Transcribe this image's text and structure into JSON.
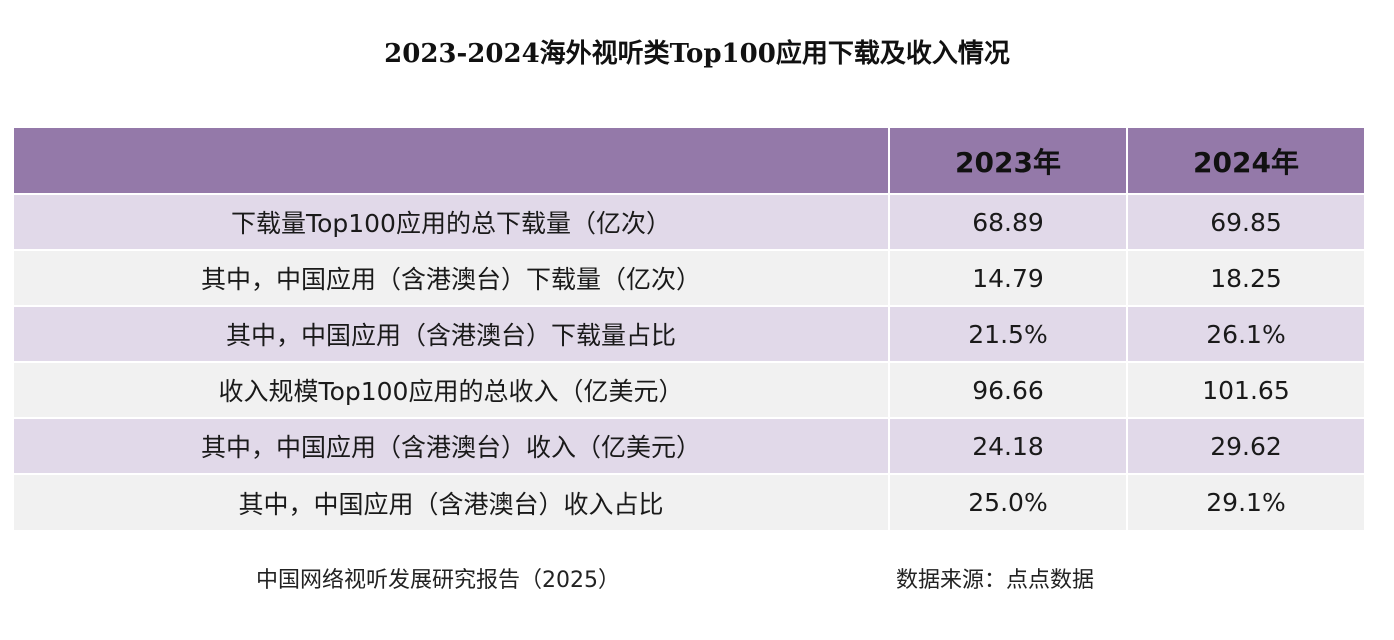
{
  "chart_data": {
    "type": "table",
    "title": "2023-2024海外视听类Top100应用下载及收入情况",
    "columns": [
      "",
      "2023年",
      "2024年"
    ],
    "rows": [
      {
        "label": "下载量Top100应用的总下载量（亿次）",
        "values": [
          "68.89",
          "69.85"
        ]
      },
      {
        "label": "其中，中国应用（含港澳台）下载量（亿次）",
        "values": [
          "14.79",
          "18.25"
        ]
      },
      {
        "label": "其中，中国应用（含港澳台）下载量占比",
        "values": [
          "21.5%",
          "26.1%"
        ]
      },
      {
        "label": "收入规模Top100应用的总收入（亿美元）",
        "values": [
          "96.66",
          "101.65"
        ]
      },
      {
        "label": "其中，中国应用（含港澳台）收入（亿美元）",
        "values": [
          "24.18",
          "29.62"
        ]
      },
      {
        "label": "其中，中国应用（含港澳台）收入占比",
        "values": [
          "25.0%",
          "29.1%"
        ]
      }
    ],
    "header_color": "#9479a9",
    "row_colors": [
      "#e1d9e9",
      "#f1f1f1"
    ]
  },
  "footer": {
    "report": "中国网络视听发展研究报告（2025）",
    "source": "数据来源：点点数据"
  }
}
